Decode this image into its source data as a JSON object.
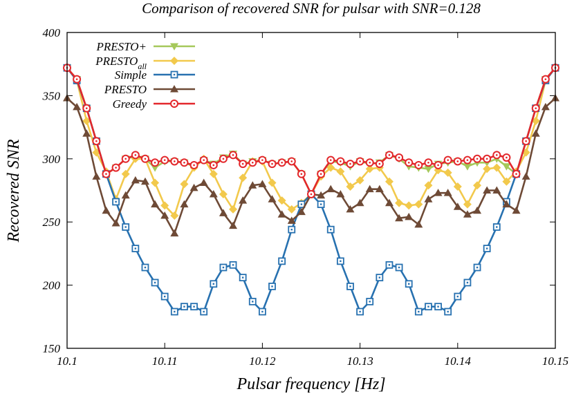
{
  "chart_data": {
    "type": "line",
    "title": "Comparison of recovered SNR for pulsar with SNR=0.128",
    "xlabel": "Pulsar frequency [Hz]",
    "ylabel": "Recovered SNR",
    "xlim": [
      10.1,
      10.15
    ],
    "ylim": [
      150,
      400
    ],
    "xticks": [
      10.1,
      10.11,
      10.12,
      10.13,
      10.14,
      10.15
    ],
    "xtick_labels": [
      "10.1",
      "10.11",
      "10.12",
      "10.13",
      "10.14",
      "10.15"
    ],
    "yticks": [
      150,
      200,
      250,
      300,
      350,
      400
    ],
    "ytick_labels": [
      "150",
      "200",
      "250",
      "300",
      "350",
      "400"
    ],
    "grid": false,
    "legend_position": "top-left",
    "x": [
      10.1,
      10.101,
      10.102,
      10.103,
      10.104,
      10.105,
      10.106,
      10.107,
      10.108,
      10.109,
      10.11,
      10.111,
      10.112,
      10.113,
      10.114,
      10.115,
      10.116,
      10.117,
      10.118,
      10.119,
      10.12,
      10.121,
      10.122,
      10.123,
      10.124,
      10.125,
      10.126,
      10.127,
      10.128,
      10.129,
      10.13,
      10.131,
      10.132,
      10.133,
      10.134,
      10.135,
      10.136,
      10.137,
      10.138,
      10.139,
      10.14,
      10.141,
      10.142,
      10.143,
      10.144,
      10.145,
      10.146,
      10.147,
      10.148,
      10.149,
      10.15
    ],
    "series": [
      {
        "name": "PRESTO+",
        "marker": "triangle-down",
        "color": "#a5c85a",
        "values": [
          372,
          363,
          340,
          314,
          288,
          293,
          300,
          302,
          300,
          293,
          298,
          298,
          297,
          294,
          299,
          296,
          301,
          304,
          296,
          298,
          299,
          296,
          297,
          298,
          288,
          272,
          288,
          298,
          297,
          294,
          298,
          296,
          297,
          303,
          300,
          294,
          293,
          292,
          296,
          297,
          298,
          294,
          297,
          297,
          300,
          294,
          288,
          314,
          340,
          363,
          372
        ]
      },
      {
        "name": "PRESTO",
        "label_sub": "all",
        "marker": "diamond",
        "color": "#f2c94c",
        "values": [
          372,
          362,
          330,
          305,
          290,
          268,
          288,
          300,
          300,
          281,
          263,
          255,
          280,
          293,
          300,
          288,
          272,
          260,
          285,
          298,
          298,
          281,
          267,
          260,
          265,
          272,
          286,
          293,
          290,
          278,
          283,
          292,
          293,
          282,
          265,
          263,
          264,
          279,
          291,
          289,
          278,
          264,
          279,
          292,
          293,
          282,
          290,
          305,
          330,
          362,
          372
        ]
      },
      {
        "name": "Simple",
        "marker": "square",
        "color": "#2771b0",
        "values": [
          372,
          362,
          340,
          314,
          288,
          266,
          246,
          229,
          214,
          202,
          191,
          179,
          183,
          183,
          179,
          201,
          214,
          216,
          206,
          187,
          179,
          199,
          219,
          244,
          264,
          272,
          264,
          244,
          219,
          199,
          179,
          187,
          206,
          216,
          214,
          201,
          179,
          183,
          183,
          179,
          191,
          202,
          214,
          229,
          246,
          266,
          288,
          314,
          340,
          362,
          372
        ]
      },
      {
        "name": "PRESTO",
        "marker": "triangle-up",
        "color": "#6e4a36",
        "values": [
          348,
          341,
          320,
          286,
          259,
          249,
          271,
          283,
          282,
          264,
          255,
          241,
          264,
          277,
          281,
          272,
          257,
          247,
          267,
          279,
          280,
          268,
          256,
          251,
          258,
          272,
          271,
          276,
          272,
          260,
          265,
          276,
          276,
          265,
          253,
          254,
          248,
          268,
          273,
          273,
          262,
          256,
          259,
          275,
          275,
          264,
          259,
          286,
          320,
          341,
          348
        ]
      },
      {
        "name": "Greedy",
        "marker": "circle",
        "color": "#e3272b",
        "values": [
          372,
          363,
          340,
          314,
          288,
          293,
          300,
          303,
          300,
          297,
          299,
          298,
          297,
          295,
          299,
          295,
          300,
          303,
          296,
          297,
          299,
          296,
          297,
          298,
          288,
          272,
          288,
          299,
          298,
          296,
          298,
          297,
          296,
          303,
          301,
          297,
          295,
          297,
          295,
          299,
          298,
          299,
          300,
          300,
          303,
          301,
          288,
          314,
          340,
          363,
          372
        ]
      }
    ]
  }
}
